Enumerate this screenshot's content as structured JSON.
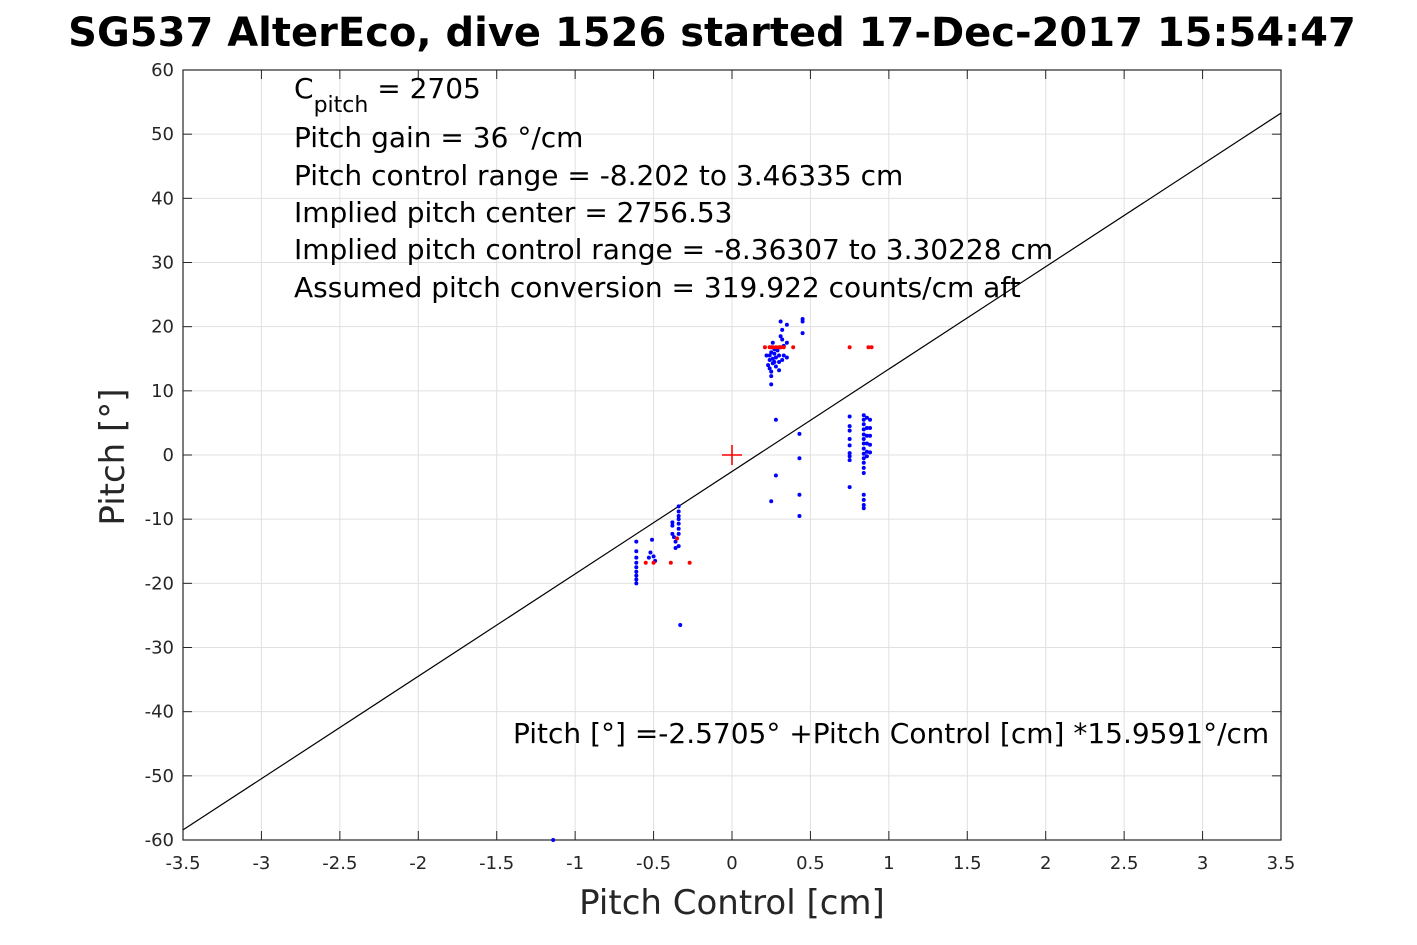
{
  "title": "SG537 AlterEco, dive 1526 started 17-Dec-2017 15:54:47",
  "chart_data": {
    "type": "scatter",
    "xlabel": "Pitch Control [cm]",
    "ylabel": "Pitch [°]",
    "xlim": [
      -3.5,
      3.5
    ],
    "ylim": [
      -60,
      60
    ],
    "xticks": [
      -3.5,
      -3,
      -2.5,
      -2,
      -1.5,
      -1,
      -0.5,
      0,
      0.5,
      1,
      1.5,
      2,
      2.5,
      3,
      3.5
    ],
    "xtick_labels": [
      "-3.5",
      "-3",
      "-2.5",
      "-2",
      "-1.5",
      "-1",
      "-0.5",
      "0",
      "0.5",
      "1",
      "1.5",
      "2",
      "2.5",
      "3",
      "3.5"
    ],
    "yticks": [
      -60,
      -50,
      -40,
      -30,
      -20,
      -10,
      0,
      10,
      20,
      30,
      40,
      50,
      60
    ],
    "ytick_labels": [
      "-60",
      "-50",
      "-40",
      "-30",
      "-20",
      "-10",
      "0",
      "10",
      "20",
      "30",
      "40",
      "50",
      "60"
    ],
    "grid": true,
    "annotations": {
      "c_pitch_label": "C",
      "c_pitch_sub": "pitch",
      "c_pitch_value": " = 2705",
      "lines": [
        "Pitch gain = 36 °/cm",
        "Pitch control range = -8.202 to 3.46335 cm",
        "Implied pitch center = 2756.53",
        "Implied pitch control range = -8.36307 to 3.30228 cm",
        "Assumed pitch conversion = 319.922 counts/cm aft"
      ],
      "fit_equation": "Pitch [°] =-2.5705° +Pitch Control [cm] *15.9591°/cm"
    },
    "fit_line": {
      "intercept": -2.5705,
      "slope": 15.9591,
      "color": "#000000"
    },
    "center_marker": {
      "x": 0,
      "y": 0,
      "color": "#ff0000"
    },
    "series": [
      {
        "color": "#0000ff",
        "points": [
          [
            -0.61,
            -13.5
          ],
          [
            -0.61,
            -15
          ],
          [
            -0.61,
            -16
          ],
          [
            -0.61,
            -16.8
          ],
          [
            -0.61,
            -17.5
          ],
          [
            -0.61,
            -18.2
          ],
          [
            -0.61,
            -18.8
          ],
          [
            -0.61,
            -19.4
          ],
          [
            -0.61,
            -20
          ],
          [
            -0.51,
            -13.2
          ],
          [
            -0.52,
            -15.2
          ],
          [
            -0.53,
            -16
          ],
          [
            -0.5,
            -15.8
          ],
          [
            -0.49,
            -16.5
          ],
          [
            -0.38,
            -10.5
          ],
          [
            -0.38,
            -11
          ],
          [
            -0.38,
            -12.3
          ],
          [
            -0.37,
            -12.8
          ],
          [
            -0.36,
            -13.5
          ],
          [
            -0.36,
            -14.5
          ],
          [
            -0.34,
            -8
          ],
          [
            -0.34,
            -8.8
          ],
          [
            -0.34,
            -9.5
          ],
          [
            -0.34,
            -10
          ],
          [
            -0.34,
            -10.7
          ],
          [
            -0.34,
            -11.5
          ],
          [
            -0.34,
            -12.3
          ],
          [
            -0.34,
            -14.2
          ],
          [
            -0.33,
            -26.5
          ],
          [
            0.22,
            15.5
          ],
          [
            0.23,
            14
          ],
          [
            0.24,
            13.5
          ],
          [
            0.24,
            14.8
          ],
          [
            0.24,
            15.5
          ],
          [
            0.25,
            16
          ],
          [
            0.25,
            16.8
          ],
          [
            0.25,
            13
          ],
          [
            0.25,
            12.3
          ],
          [
            0.25,
            11
          ],
          [
            0.26,
            17.5
          ],
          [
            0.26,
            15
          ],
          [
            0.26,
            14.3
          ],
          [
            0.27,
            16.5
          ],
          [
            0.27,
            15.8
          ],
          [
            0.27,
            14.5
          ],
          [
            0.28,
            15.2
          ],
          [
            0.28,
            13.8
          ],
          [
            0.29,
            16.3
          ],
          [
            0.3,
            15.5
          ],
          [
            0.3,
            14.5
          ],
          [
            0.3,
            13.2
          ],
          [
            0.31,
            16.8
          ],
          [
            0.31,
            18.5
          ],
          [
            0.31,
            20.8
          ],
          [
            0.32,
            19.5
          ],
          [
            0.32,
            18
          ],
          [
            0.32,
            14.8
          ],
          [
            0.33,
            17
          ],
          [
            0.33,
            15.5
          ],
          [
            0.35,
            20.3
          ],
          [
            0.35,
            17.5
          ],
          [
            0.35,
            15.2
          ],
          [
            0.45,
            21.2
          ],
          [
            0.45,
            20.8
          ],
          [
            0.45,
            19
          ],
          [
            0.28,
            5.5
          ],
          [
            0.28,
            -3.2
          ],
          [
            0.25,
            -7.2
          ],
          [
            0.43,
            3.3
          ],
          [
            0.43,
            -0.5
          ],
          [
            0.43,
            -6.2
          ],
          [
            0.43,
            -9.5
          ],
          [
            0.75,
            6
          ],
          [
            0.75,
            4.5
          ],
          [
            0.75,
            3.8
          ],
          [
            0.75,
            2.5
          ],
          [
            0.75,
            1.5
          ],
          [
            0.75,
            0.3
          ],
          [
            0.75,
            -0.2
          ],
          [
            0.75,
            -0.8
          ],
          [
            0.75,
            -5
          ],
          [
            0.84,
            6.2
          ],
          [
            0.84,
            5.5
          ],
          [
            0.84,
            4.8
          ],
          [
            0.84,
            4
          ],
          [
            0.84,
            3.2
          ],
          [
            0.84,
            2.5
          ],
          [
            0.84,
            1.8
          ],
          [
            0.84,
            1
          ],
          [
            0.84,
            0.2
          ],
          [
            0.84,
            -0.5
          ],
          [
            0.84,
            -1.2
          ],
          [
            0.84,
            -2
          ],
          [
            0.84,
            -2.8
          ],
          [
            0.84,
            -6.2
          ],
          [
            0.84,
            -7
          ],
          [
            0.84,
            -7.8
          ],
          [
            0.84,
            -8.3
          ],
          [
            0.86,
            5.8
          ],
          [
            0.86,
            4.2
          ],
          [
            0.86,
            3
          ],
          [
            0.86,
            1.8
          ],
          [
            0.86,
            0.5
          ],
          [
            0.86,
            -0.2
          ],
          [
            0.88,
            5.5
          ],
          [
            0.88,
            4.2
          ],
          [
            0.88,
            3
          ],
          [
            0.88,
            1.6
          ],
          [
            0.88,
            0.4
          ],
          [
            -1.14,
            -60
          ]
        ]
      },
      {
        "color": "#ff0000",
        "points": [
          [
            -0.55,
            -16.8
          ],
          [
            -0.5,
            -16.8
          ],
          [
            -0.39,
            -16.8
          ],
          [
            -0.35,
            -13
          ],
          [
            -0.27,
            -16.8
          ],
          [
            0.21,
            16.8
          ],
          [
            0.24,
            16.8
          ],
          [
            0.26,
            16.8
          ],
          [
            0.28,
            16.8
          ],
          [
            0.3,
            16.8
          ],
          [
            0.31,
            16.8
          ],
          [
            0.33,
            16.8
          ],
          [
            0.39,
            16.8
          ],
          [
            0.75,
            16.8
          ],
          [
            0.87,
            16.8
          ],
          [
            0.89,
            16.8
          ]
        ]
      }
    ]
  }
}
